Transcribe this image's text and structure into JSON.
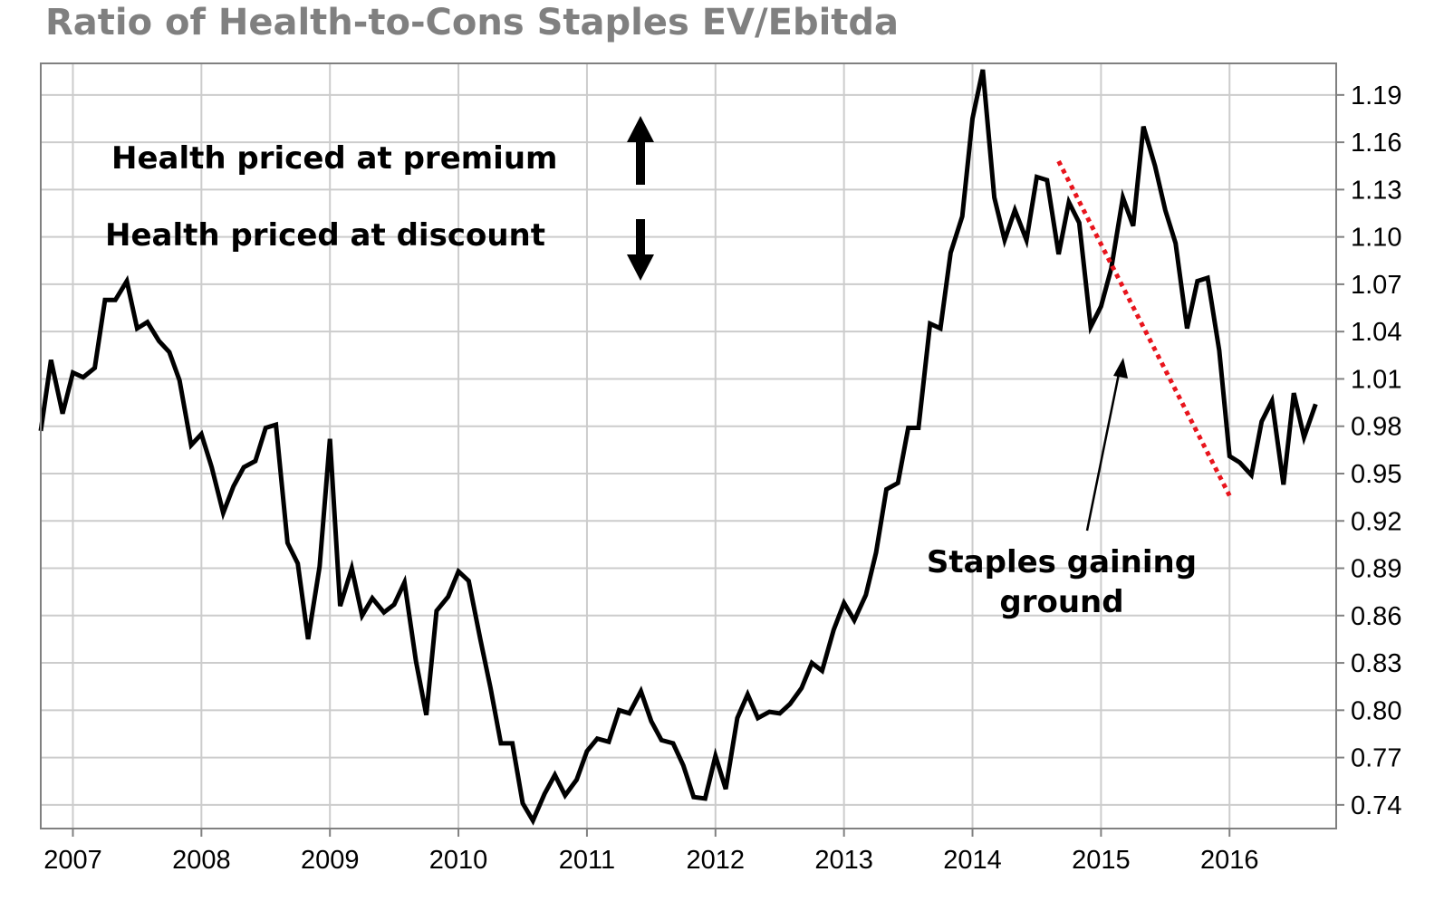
{
  "chart_data": {
    "type": "line",
    "title": "Ratio of Health-to-Cons Staples EV/Ebitda",
    "xlabel": "",
    "ylabel": "",
    "x_tick_labels": [
      "2007",
      "2008",
      "2009",
      "2010",
      "2011",
      "2012",
      "2013",
      "2014",
      "2015",
      "2016"
    ],
    "y_tick_labels": [
      "0.74",
      "0.77",
      "0.80",
      "0.83",
      "0.86",
      "0.89",
      "0.92",
      "0.95",
      "0.98",
      "1.01",
      "1.04",
      "1.07",
      "1.10",
      "1.13",
      "1.16",
      "1.19"
    ],
    "xlim": [
      2006.75,
      2016.83
    ],
    "ylim": [
      0.725,
      1.21
    ],
    "grid": true,
    "y_axis_side": "right",
    "colors": {
      "line": "#000000",
      "trend": "#e8141c",
      "grid": "#cccccc",
      "frame": "#808080",
      "title": "#808080"
    },
    "series": [
      {
        "x": [
          2006.75,
          2006.83,
          2006.92,
          2007.0,
          2007.08,
          2007.17,
          2007.25,
          2007.33,
          2007.42,
          2007.5,
          2007.58,
          2007.67,
          2007.75,
          2007.83,
          2007.92,
          2008.0,
          2008.08,
          2008.17,
          2008.25,
          2008.33,
          2008.42,
          2008.5,
          2008.58,
          2008.67,
          2008.75,
          2008.83,
          2008.92,
          2009.0,
          2009.08,
          2009.17,
          2009.25,
          2009.33,
          2009.42,
          2009.5,
          2009.58,
          2009.67,
          2009.75,
          2009.83,
          2009.92,
          2010.0,
          2010.08,
          2010.17,
          2010.25,
          2010.33,
          2010.42,
          2010.5,
          2010.58,
          2010.67,
          2010.75,
          2010.83,
          2010.92,
          2011.0,
          2011.08,
          2011.17,
          2011.25,
          2011.33,
          2011.42,
          2011.5,
          2011.58,
          2011.67,
          2011.75,
          2011.83,
          2011.92,
          2012.0,
          2012.08,
          2012.17,
          2012.25,
          2012.33,
          2012.42,
          2012.5,
          2012.58,
          2012.67,
          2012.75,
          2012.83,
          2012.92,
          2013.0,
          2013.08,
          2013.17,
          2013.25,
          2013.33,
          2013.42,
          2013.5,
          2013.58,
          2013.67,
          2013.75,
          2013.83,
          2013.92,
          2014.0,
          2014.08,
          2014.17,
          2014.25,
          2014.33,
          2014.42,
          2014.5,
          2014.58,
          2014.67,
          2014.75,
          2014.83,
          2014.92,
          2015.0,
          2015.08,
          2015.17,
          2015.25,
          2015.33,
          2015.42,
          2015.5,
          2015.58,
          2015.67,
          2015.75,
          2015.83,
          2015.92,
          2016.0,
          2016.08,
          2016.17,
          2016.25,
          2016.33,
          2016.42,
          2016.5,
          2016.58,
          2016.67
        ],
        "values": [
          0.977,
          1.022,
          0.988,
          1.014,
          1.011,
          1.017,
          1.06,
          1.06,
          1.072,
          1.042,
          1.046,
          1.034,
          1.027,
          1.009,
          0.968,
          0.975,
          0.954,
          0.925,
          0.942,
          0.954,
          0.958,
          0.979,
          0.981,
          0.906,
          0.893,
          0.845,
          0.891,
          0.972,
          0.866,
          0.89,
          0.86,
          0.871,
          0.862,
          0.867,
          0.881,
          0.831,
          0.797,
          0.863,
          0.872,
          0.888,
          0.882,
          0.845,
          0.814,
          0.779,
          0.779,
          0.741,
          0.73,
          0.747,
          0.759,
          0.746,
          0.756,
          0.774,
          0.782,
          0.78,
          0.8,
          0.798,
          0.812,
          0.793,
          0.781,
          0.779,
          0.765,
          0.745,
          0.744,
          0.771,
          0.75,
          0.795,
          0.81,
          0.795,
          0.799,
          0.798,
          0.804,
          0.814,
          0.83,
          0.825,
          0.851,
          0.868,
          0.857,
          0.873,
          0.9,
          0.94,
          0.944,
          0.979,
          0.979,
          1.045,
          1.042,
          1.09,
          1.113,
          1.175,
          1.206,
          1.125,
          1.098,
          1.117,
          1.098,
          1.138,
          1.136,
          1.089,
          1.122,
          1.109,
          1.043,
          1.056,
          1.08,
          1.125,
          1.107,
          1.17,
          1.145,
          1.117,
          1.096,
          1.042,
          1.072,
          1.074,
          1.028,
          0.961,
          0.957,
          0.949,
          0.983,
          0.996,
          0.943,
          1.001,
          0.973,
          0.994
        ]
      }
    ],
    "trend_line": {
      "x": [
        2014.67,
        2016.0
      ],
      "values": [
        1.148,
        0.936
      ]
    },
    "annotations": {
      "premium": "Health priced at premium",
      "discount": "Health priced at discount",
      "staples_line1": "Staples gaining",
      "staples_line2": "ground"
    }
  }
}
